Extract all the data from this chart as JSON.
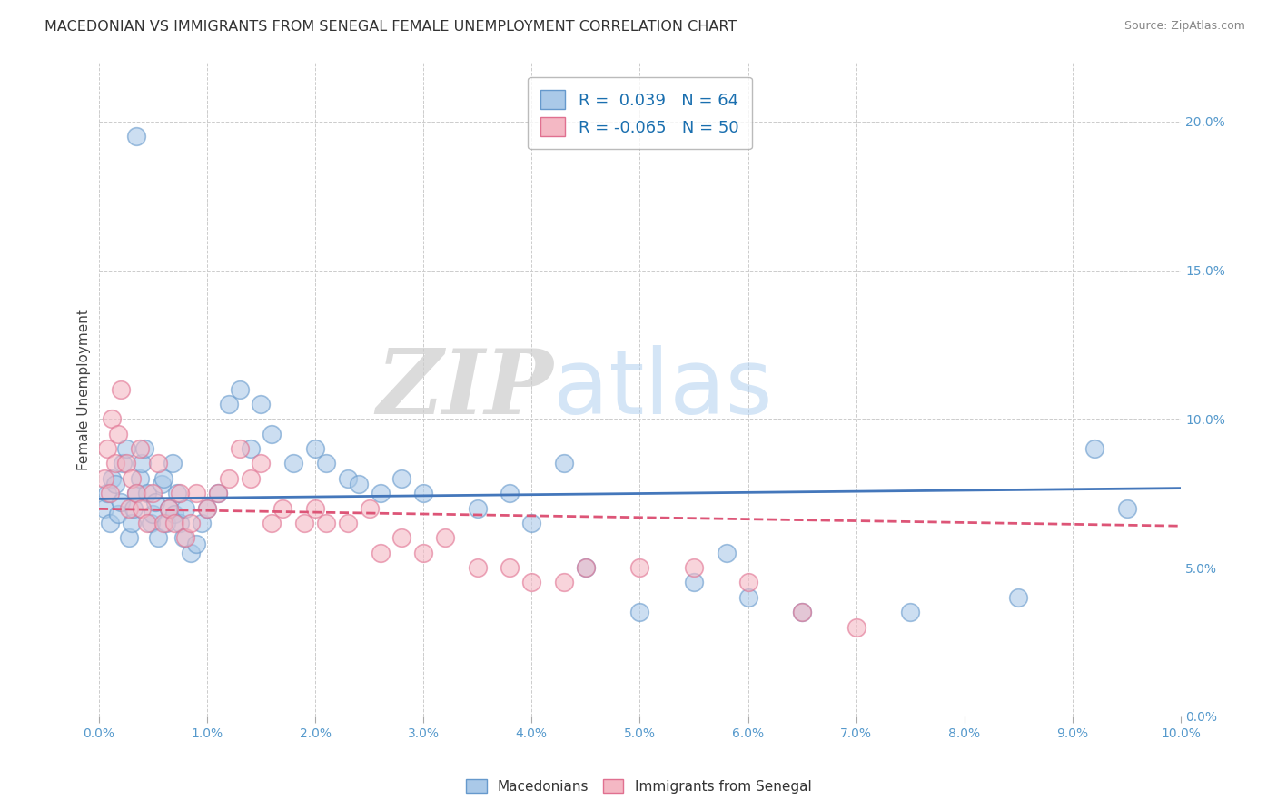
{
  "title": "MACEDONIAN VS IMMIGRANTS FROM SENEGAL FEMALE UNEMPLOYMENT CORRELATION CHART",
  "source": "Source: ZipAtlas.com",
  "R1": 0.039,
  "N1": 64,
  "R2": -0.065,
  "N2": 50,
  "watermark_zip": "ZIP",
  "watermark_atlas": "atlas",
  "ylabel": "Female Unemployment",
  "background": "#ffffff",
  "grid_color": "#cccccc",
  "macedonian_color": "#aac9e8",
  "macedonian_edge": "#6699cc",
  "senegal_color": "#f4b8c4",
  "senegal_edge": "#e07090",
  "trend_blue": "#4477bb",
  "trend_pink": "#dd5577",
  "xlim": [
    0.0,
    10.0
  ],
  "ylim": [
    0.0,
    22.0
  ],
  "macedonians_x": [
    0.05,
    0.08,
    0.1,
    0.12,
    0.15,
    0.18,
    0.2,
    0.22,
    0.25,
    0.28,
    0.3,
    0.32,
    0.35,
    0.38,
    0.4,
    0.42,
    0.45,
    0.48,
    0.5,
    0.52,
    0.55,
    0.58,
    0.6,
    0.62,
    0.65,
    0.68,
    0.7,
    0.72,
    0.75,
    0.78,
    0.8,
    0.85,
    0.9,
    0.95,
    1.0,
    1.1,
    1.2,
    1.3,
    1.5,
    1.8,
    2.0,
    2.3,
    2.6,
    2.8,
    3.0,
    3.5,
    4.0,
    4.5,
    5.0,
    5.5,
    6.0,
    6.5,
    7.5,
    8.5,
    9.2,
    1.4,
    1.6,
    2.1,
    2.4,
    3.8,
    4.3,
    0.35,
    5.8,
    9.5
  ],
  "macedonians_y": [
    7.0,
    7.5,
    6.5,
    8.0,
    7.8,
    6.8,
    7.2,
    8.5,
    9.0,
    6.0,
    6.5,
    7.0,
    7.5,
    8.0,
    8.5,
    9.0,
    7.5,
    6.5,
    6.8,
    7.2,
    6.0,
    7.8,
    8.0,
    6.5,
    7.0,
    8.5,
    6.8,
    7.5,
    6.5,
    6.0,
    7.0,
    5.5,
    5.8,
    6.5,
    7.0,
    7.5,
    10.5,
    11.0,
    10.5,
    8.5,
    9.0,
    8.0,
    7.5,
    8.0,
    7.5,
    7.0,
    6.5,
    5.0,
    3.5,
    4.5,
    4.0,
    3.5,
    3.5,
    4.0,
    9.0,
    9.0,
    9.5,
    8.5,
    7.8,
    7.5,
    8.5,
    19.5,
    5.5,
    7.0
  ],
  "senegal_x": [
    0.05,
    0.08,
    0.1,
    0.12,
    0.15,
    0.18,
    0.2,
    0.25,
    0.28,
    0.3,
    0.35,
    0.38,
    0.4,
    0.45,
    0.5,
    0.55,
    0.6,
    0.65,
    0.7,
    0.8,
    0.9,
    1.0,
    1.1,
    1.2,
    1.3,
    1.4,
    1.5,
    1.7,
    1.9,
    2.1,
    2.3,
    2.5,
    2.8,
    3.0,
    3.2,
    3.5,
    3.8,
    4.0,
    4.3,
    4.5,
    5.0,
    5.5,
    6.0,
    6.5,
    7.0,
    2.6,
    1.6,
    0.75,
    0.85,
    2.0
  ],
  "senegal_y": [
    8.0,
    9.0,
    7.5,
    10.0,
    8.5,
    9.5,
    11.0,
    8.5,
    7.0,
    8.0,
    7.5,
    9.0,
    7.0,
    6.5,
    7.5,
    8.5,
    6.5,
    7.0,
    6.5,
    6.0,
    7.5,
    7.0,
    7.5,
    8.0,
    9.0,
    8.0,
    8.5,
    7.0,
    6.5,
    6.5,
    6.5,
    7.0,
    6.0,
    5.5,
    6.0,
    5.0,
    5.0,
    4.5,
    4.5,
    5.0,
    5.0,
    5.0,
    4.5,
    3.5,
    3.0,
    5.5,
    6.5,
    7.5,
    6.5,
    7.0
  ]
}
